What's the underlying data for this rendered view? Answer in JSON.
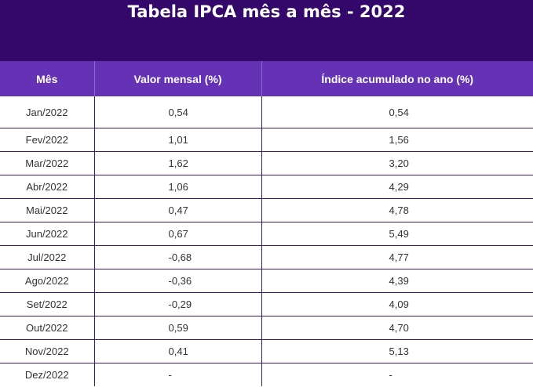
{
  "title": "Tabela IPCA mês a mês - 2022",
  "headers": {
    "month": "Mês",
    "monthly": "Valor mensal (%)",
    "accumulated": "Índice acumulado no ano (%)"
  },
  "colors": {
    "banner": "#34076a",
    "header_row": "#6532b6",
    "grid_lines": "#3a1a6a"
  },
  "rows": [
    {
      "month": "Jan/2022",
      "monthly": "0,54",
      "accumulated": "0,54"
    },
    {
      "month": "Fev/2022",
      "monthly": "1,01",
      "accumulated": "1,56"
    },
    {
      "month": "Mar/2022",
      "monthly": "1,62",
      "accumulated": "3,20"
    },
    {
      "month": "Abr/2022",
      "monthly": "1,06",
      "accumulated": "4,29"
    },
    {
      "month": "Mai/2022",
      "monthly": "0,47",
      "accumulated": "4,78"
    },
    {
      "month": "Jun/2022",
      "monthly": "0,67",
      "accumulated": "5,49"
    },
    {
      "month": "Jul/2022",
      "monthly": "-0,68",
      "accumulated": "4,77"
    },
    {
      "month": "Ago/2022",
      "monthly": "-0,36",
      "accumulated": "4,39"
    },
    {
      "month": "Set/2022",
      "monthly": "-0,29",
      "accumulated": "4,09"
    },
    {
      "month": "Out/2022",
      "monthly": "0,59",
      "accumulated": "4,70"
    },
    {
      "month": "Nov/2022",
      "monthly": "0,41",
      "accumulated": "5,13"
    },
    {
      "month": "Dez/2022",
      "monthly": "-",
      "accumulated": "-"
    }
  ]
}
